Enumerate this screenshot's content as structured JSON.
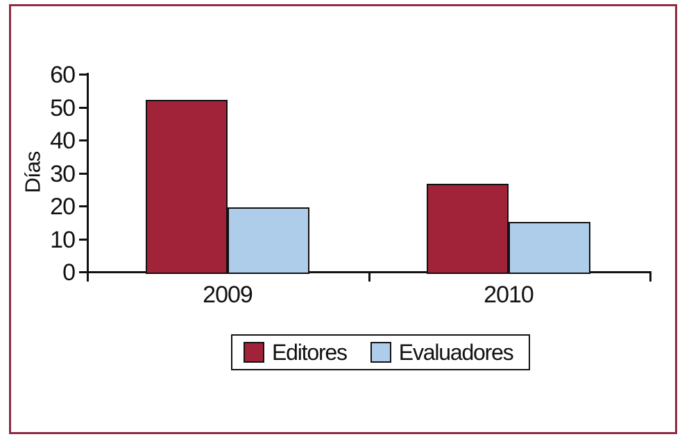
{
  "frame": {
    "border_color": "#8c2d43"
  },
  "chart_data": {
    "type": "bar",
    "title": "",
    "xlabel": "",
    "ylabel": "Días",
    "categories": [
      "2009",
      "2010"
    ],
    "series": [
      {
        "name": "Editores",
        "color": "#a12339",
        "values": [
          52.5,
          27
        ]
      },
      {
        "name": "Evaluadores",
        "color": "#adcdea",
        "values": [
          19.8,
          15.4
        ]
      }
    ],
    "ylim": [
      0,
      60
    ],
    "yticks": [
      0,
      10,
      20,
      30,
      40,
      50,
      60
    ],
    "grid": false,
    "bar_outline_color": "#111111",
    "axis_color": "#111111",
    "legend_position": "bottom-center"
  }
}
